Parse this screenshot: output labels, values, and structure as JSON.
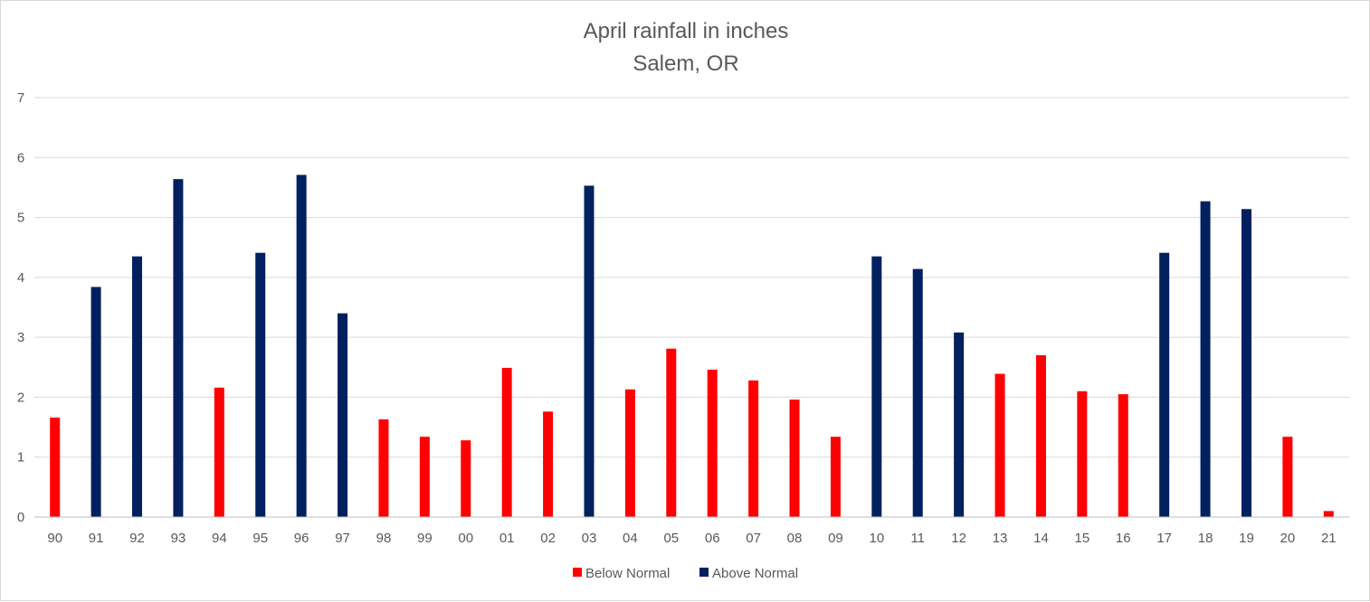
{
  "chart_data": {
    "type": "bar",
    "title": "April rainfall in inches",
    "subtitle": "Salem, OR",
    "xlabel": "",
    "ylabel": "",
    "ylim": [
      0,
      7
    ],
    "yticks": [
      "0",
      "1",
      "2",
      "3",
      "4",
      "5",
      "6",
      "7"
    ],
    "grid": true,
    "legend_position": "bottom",
    "categories": [
      "90",
      "91",
      "92",
      "93",
      "94",
      "95",
      "96",
      "97",
      "98",
      "99",
      "00",
      "01",
      "02",
      "03",
      "04",
      "05",
      "06",
      "07",
      "08",
      "09",
      "10",
      "11",
      "12",
      "13",
      "14",
      "15",
      "16",
      "17",
      "18",
      "19",
      "20",
      "21"
    ],
    "series": [
      {
        "name": "Below Normal",
        "color": "#ff0000",
        "values": [
          1.66,
          null,
          null,
          null,
          2.16,
          null,
          null,
          null,
          1.63,
          1.34,
          1.28,
          2.49,
          1.76,
          null,
          2.13,
          2.81,
          2.46,
          2.28,
          1.96,
          1.34,
          null,
          null,
          null,
          2.39,
          2.7,
          2.1,
          2.05,
          null,
          null,
          null,
          1.34,
          0.1
        ]
      },
      {
        "name": "Above Normal",
        "color": "#002060",
        "values": [
          null,
          3.84,
          4.35,
          5.64,
          null,
          4.41,
          5.71,
          3.4,
          null,
          null,
          null,
          null,
          null,
          5.53,
          null,
          null,
          null,
          null,
          null,
          null,
          4.35,
          4.14,
          3.08,
          null,
          null,
          null,
          null,
          4.41,
          5.27,
          5.14,
          null,
          null
        ]
      }
    ]
  }
}
